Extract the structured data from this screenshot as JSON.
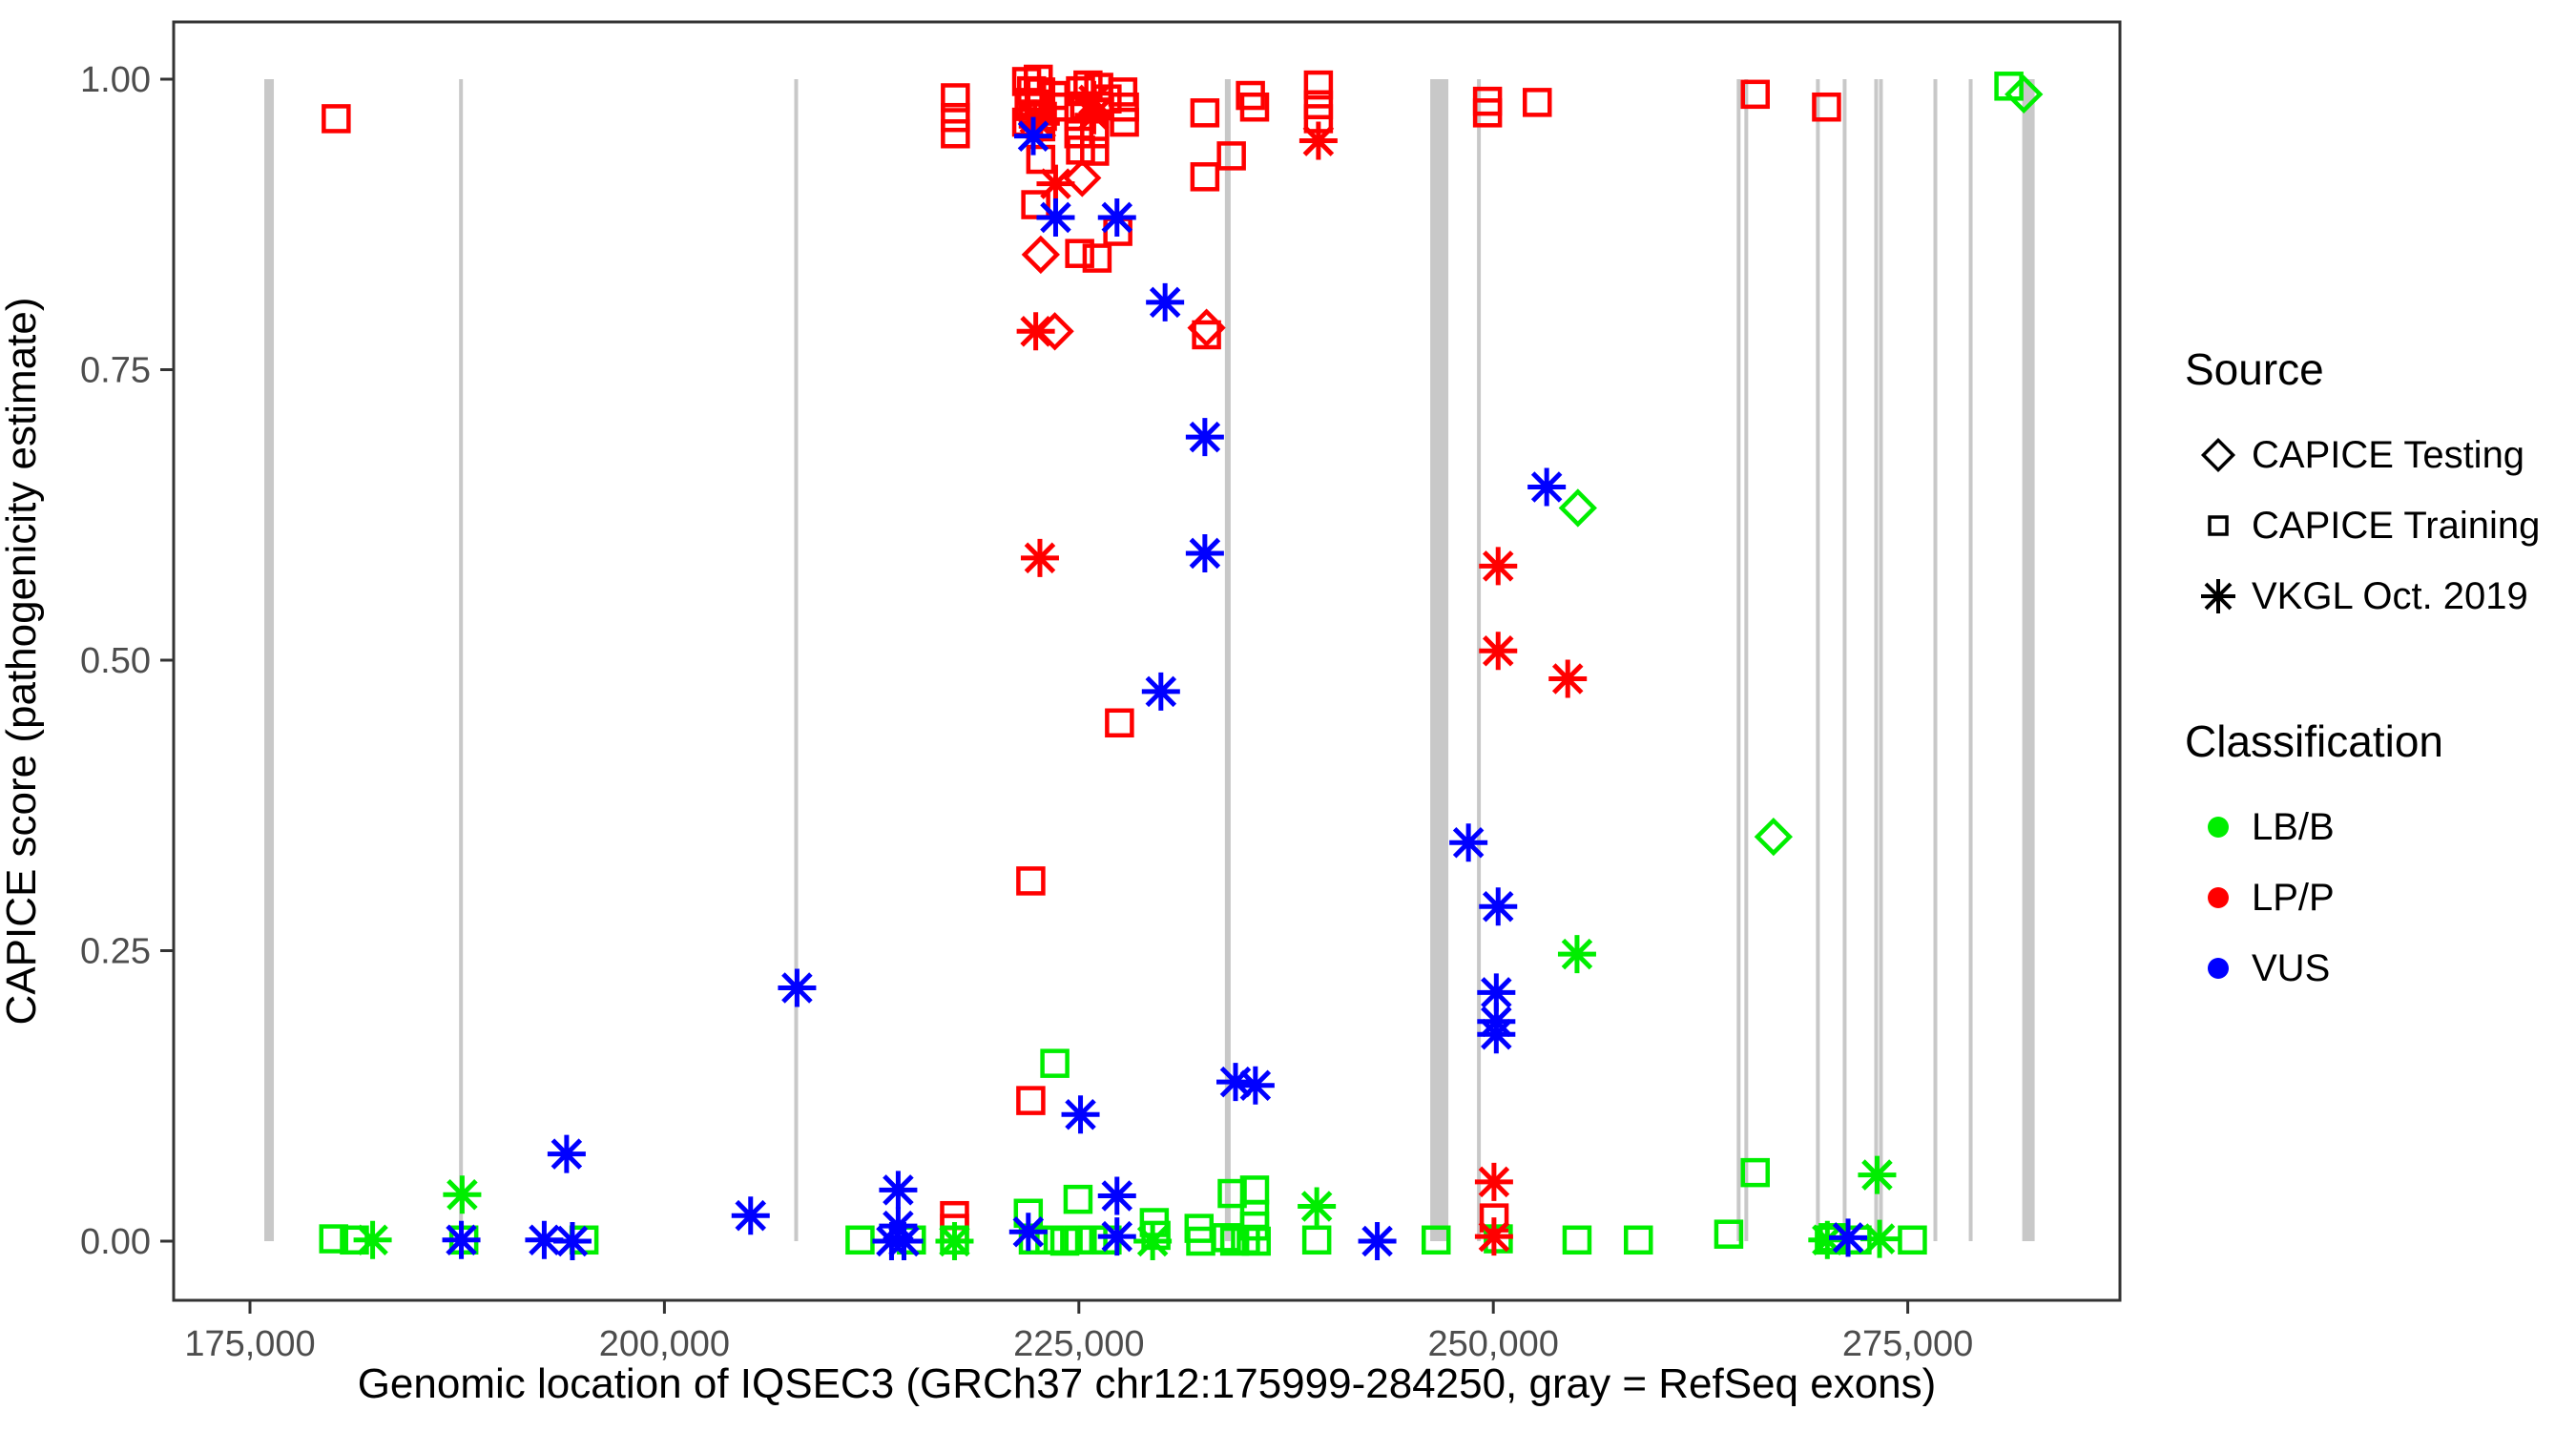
{
  "chart_data": {
    "type": "scatter",
    "title": "",
    "xlabel": "Genomic location of IQSEC3 (GRCh37 chr12:175999-284250, gray = RefSeq exons)",
    "ylabel": "CAPICE score (pathogenicity estimate)",
    "xlim": [
      170500,
      288400
    ],
    "ylim": [
      -0.05,
      1.05
    ],
    "grid": false,
    "legend_position": "right",
    "x_ticks": [
      {
        "value": 175000,
        "label": "175,000"
      },
      {
        "value": 200000,
        "label": "200,000"
      },
      {
        "value": 225000,
        "label": "225,000"
      },
      {
        "value": 250000,
        "label": "250,000"
      },
      {
        "value": 275000,
        "label": "275,000"
      }
    ],
    "y_ticks": [
      {
        "value": 0.0,
        "label": "0.00"
      },
      {
        "value": 0.25,
        "label": "0.25"
      },
      {
        "value": 0.5,
        "label": "0.50"
      },
      {
        "value": 0.75,
        "label": "0.75"
      },
      {
        "value": 1.0,
        "label": "1.00"
      }
    ],
    "exon_color": "#C8C8C8",
    "exons": [
      [
        175864,
        176440
      ],
      [
        187614,
        187787
      ],
      [
        207832,
        208005
      ],
      [
        233810,
        234155
      ],
      [
        246194,
        247288
      ],
      [
        249016,
        249189
      ],
      [
        264683,
        264914
      ],
      [
        265144,
        265374
      ],
      [
        269464,
        269694
      ],
      [
        271077,
        271307
      ],
      [
        272978,
        273150
      ],
      [
        273266,
        273496
      ],
      [
        276549,
        276722
      ],
      [
        278680,
        278910
      ],
      [
        281906,
        282654
      ]
    ],
    "series": [
      {
        "name": "CAPICE Training / LP-P",
        "source": "CAPICE Training",
        "classification": "LP/P",
        "marker": "square",
        "color": "#FF0000",
        "points": [
          [
            180200,
            0.966
          ],
          [
            217550,
            0.984
          ],
          [
            217550,
            0.967
          ],
          [
            217550,
            0.953
          ],
          [
            217500,
            0.022
          ],
          [
            217500,
            0.011
          ],
          [
            221850,
            0.998
          ],
          [
            222550,
            1.0
          ],
          [
            222150,
            0.99
          ],
          [
            222700,
            0.989
          ],
          [
            222000,
            0.98
          ],
          [
            222600,
            0.978
          ],
          [
            222250,
            0.97
          ],
          [
            222800,
            0.968
          ],
          [
            221850,
            0.963
          ],
          [
            222700,
            0.959
          ],
          [
            223500,
            0.986
          ],
          [
            223850,
            0.976
          ],
          [
            225100,
            0.99
          ],
          [
            225550,
            0.995
          ],
          [
            226200,
            0.993
          ],
          [
            225350,
            0.977
          ],
          [
            226200,
            0.977
          ],
          [
            226700,
            0.983
          ],
          [
            225000,
            0.968
          ],
          [
            225000,
            0.953
          ],
          [
            225100,
            0.939
          ],
          [
            225950,
            0.953
          ],
          [
            225950,
            0.938
          ],
          [
            227650,
            0.989
          ],
          [
            227750,
            0.976
          ],
          [
            227750,
            0.963
          ],
          [
            222700,
            0.931
          ],
          [
            222400,
            0.892
          ],
          [
            227350,
            0.869
          ],
          [
            225050,
            0.85
          ],
          [
            226100,
            0.846
          ],
          [
            232600,
            0.971
          ],
          [
            232600,
            0.916
          ],
          [
            234200,
            0.934
          ],
          [
            235350,
            0.986
          ],
          [
            235600,
            0.976
          ],
          [
            232700,
            0.78
          ],
          [
            239450,
            0.995
          ],
          [
            239450,
            0.978
          ],
          [
            239450,
            0.966
          ],
          [
            249650,
            0.981
          ],
          [
            249650,
            0.971
          ],
          [
            252650,
            0.98
          ],
          [
            265800,
            0.987
          ],
          [
            270100,
            0.976
          ],
          [
            222100,
            0.31
          ],
          [
            222100,
            0.121
          ],
          [
            227450,
            0.446
          ],
          [
            250050,
            0.02
          ]
        ]
      },
      {
        "name": "CAPICE Training / LB-B",
        "source": "CAPICE Training",
        "classification": "LB/B",
        "marker": "square",
        "color": "#00EE00",
        "points": [
          [
            180050,
            0.002
          ],
          [
            181300,
            0.001
          ],
          [
            187900,
            0.001
          ],
          [
            195150,
            0.001
          ],
          [
            211800,
            0.001
          ],
          [
            214900,
            0.001
          ],
          [
            217500,
            0.001
          ],
          [
            221950,
            0.024
          ],
          [
            222250,
            0.001
          ],
          [
            223250,
            0.001
          ],
          [
            224150,
            0.0
          ],
          [
            225000,
            0.001
          ],
          [
            225850,
            0.001
          ],
          [
            226700,
            0.001
          ],
          [
            224950,
            0.036
          ],
          [
            223550,
            0.153
          ],
          [
            229550,
            0.016
          ],
          [
            229650,
            0.005
          ],
          [
            232250,
            0.011
          ],
          [
            232350,
            0.0
          ],
          [
            233900,
            0.003
          ],
          [
            234400,
            0.0
          ],
          [
            235050,
            0.001
          ],
          [
            235700,
            0.0
          ],
          [
            234250,
            0.041
          ],
          [
            235600,
            0.044
          ],
          [
            235600,
            0.023
          ],
          [
            235600,
            0.013
          ],
          [
            239350,
            0.001
          ],
          [
            246550,
            0.001
          ],
          [
            250300,
            0.002
          ],
          [
            255050,
            0.001
          ],
          [
            258750,
            0.001
          ],
          [
            264200,
            0.006
          ],
          [
            265800,
            0.059
          ],
          [
            270270,
            0.001
          ],
          [
            270500,
            0.003
          ],
          [
            271940,
            0.001
          ],
          [
            275280,
            0.001
          ],
          [
            281100,
            0.994
          ]
        ]
      },
      {
        "name": "CAPICE Testing / LP-P",
        "source": "CAPICE Testing",
        "classification": "LP/P",
        "marker": "diamond",
        "color": "#FF0000",
        "points": [
          [
            222700,
            0.849
          ],
          [
            225200,
            0.915
          ],
          [
            223550,
            0.783
          ],
          [
            232700,
            0.786
          ]
        ]
      },
      {
        "name": "CAPICE Testing / LB-B",
        "source": "CAPICE Testing",
        "classification": "LB/B",
        "marker": "diamond",
        "color": "#00EE00",
        "points": [
          [
            255100,
            0.631
          ],
          [
            266900,
            0.348
          ],
          [
            282000,
            0.987
          ]
        ]
      },
      {
        "name": "VKGL Oct. 2019 / LP-P",
        "source": "VKGL Oct. 2019",
        "classification": "LP/P",
        "marker": "star8",
        "color": "#FF0000",
        "points": [
          [
            222350,
            0.966
          ],
          [
            222700,
            0.962
          ],
          [
            225900,
            0.982
          ],
          [
            225900,
            0.969
          ],
          [
            223600,
            0.91
          ],
          [
            222400,
            0.783
          ],
          [
            239450,
            0.947
          ],
          [
            222650,
            0.588
          ],
          [
            250290,
            0.581
          ],
          [
            250290,
            0.508
          ],
          [
            254490,
            0.484
          ],
          [
            250040,
            0.051
          ],
          [
            250040,
            0.004
          ]
        ]
      },
      {
        "name": "VKGL Oct. 2019 / LB-B",
        "source": "VKGL Oct. 2019",
        "classification": "LB/B",
        "marker": "star8",
        "color": "#00EE00",
        "points": [
          [
            182400,
            0.001
          ],
          [
            187800,
            0.04
          ],
          [
            217500,
            0.0
          ],
          [
            229450,
            0.0
          ],
          [
            239350,
            0.03
          ],
          [
            255050,
            0.247
          ],
          [
            270150,
            0.001
          ],
          [
            273150,
            0.057
          ],
          [
            273300,
            0.002
          ]
        ]
      },
      {
        "name": "VKGL Oct. 2019 / VUS",
        "source": "VKGL Oct. 2019",
        "classification": "VUS",
        "marker": "star8",
        "color": "#0000FF",
        "points": [
          [
            187750,
            0.001
          ],
          [
            192750,
            0.001
          ],
          [
            194100,
            0.075
          ],
          [
            194450,
            0.0
          ],
          [
            205200,
            0.022
          ],
          [
            208000,
            0.218
          ],
          [
            213700,
            0.0
          ],
          [
            214100,
            0.044
          ],
          [
            214100,
            0.013
          ],
          [
            214450,
            0.0
          ],
          [
            221950,
            0.008
          ],
          [
            222250,
            0.951
          ],
          [
            223600,
            0.881
          ],
          [
            227300,
            0.881
          ],
          [
            225100,
            0.109
          ],
          [
            227300,
            0.039
          ],
          [
            227300,
            0.004
          ],
          [
            229950,
            0.473
          ],
          [
            230200,
            0.808
          ],
          [
            232600,
            0.692
          ],
          [
            232600,
            0.592
          ],
          [
            234450,
            0.137
          ],
          [
            235650,
            0.134
          ],
          [
            243000,
            0.0
          ],
          [
            248500,
            0.343
          ],
          [
            250290,
            0.288
          ],
          [
            250180,
            0.214
          ],
          [
            250180,
            0.189
          ],
          [
            250180,
            0.178
          ],
          [
            253220,
            0.649
          ],
          [
            271400,
            0.003
          ]
        ]
      }
    ]
  },
  "legend": {
    "source_title": "Source",
    "source_items": [
      {
        "label": "CAPICE Testing",
        "marker": "diamond"
      },
      {
        "label": "CAPICE Training",
        "marker": "square"
      },
      {
        "label": "VKGL Oct. 2019",
        "marker": "star8"
      }
    ],
    "classification_title": "Classification",
    "classification_items": [
      {
        "label": "LB/B",
        "color": "#00EE00"
      },
      {
        "label": "LP/P",
        "color": "#FF0000"
      },
      {
        "label": "VUS",
        "color": "#0000FF"
      }
    ]
  },
  "style": {
    "tick_label_color": "#4D4D4D",
    "panel_border_color": "#333333"
  }
}
